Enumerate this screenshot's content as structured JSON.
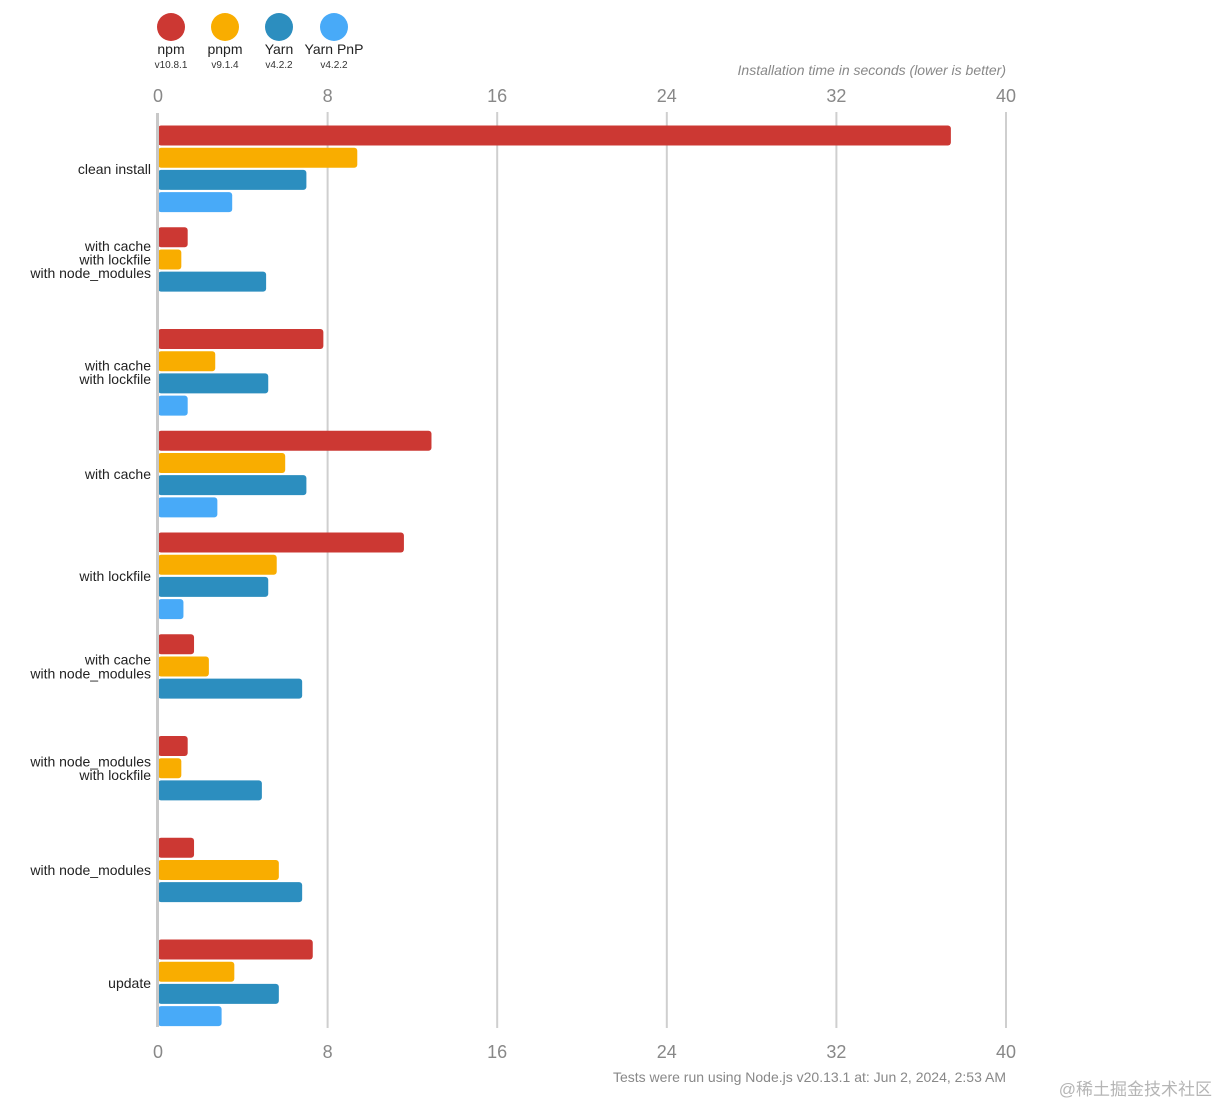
{
  "chart_data": {
    "type": "bar",
    "orientation": "horizontal",
    "axis_title": "Installation time in seconds (lower is better)",
    "footnote": "Tests were run using Node.js v20.13.1 at: Jun 2, 2024, 2:53 AM",
    "xlim": [
      0,
      40
    ],
    "ticks": [
      0,
      8,
      16,
      24,
      32,
      40
    ],
    "grid": true,
    "legend_position": "top-left",
    "categories": [
      [
        "clean install"
      ],
      [
        "with cache",
        "with lockfile",
        "with node_modules"
      ],
      [
        "with cache",
        "with lockfile"
      ],
      [
        "with cache"
      ],
      [
        "with lockfile"
      ],
      [
        "with cache",
        "with node_modules"
      ],
      [
        "with node_modules",
        "with lockfile"
      ],
      [
        "with node_modules"
      ],
      [
        "update"
      ]
    ],
    "series": [
      {
        "name": "npm",
        "version": "v10.8.1",
        "color": "#cc3833",
        "values": [
          37.4,
          1.4,
          7.8,
          12.9,
          11.6,
          1.7,
          1.4,
          1.7,
          7.3
        ]
      },
      {
        "name": "pnpm",
        "version": "v9.1.4",
        "color": "#f9ad00",
        "values": [
          9.4,
          1.1,
          2.7,
          6.0,
          5.6,
          2.4,
          1.1,
          5.7,
          3.6
        ]
      },
      {
        "name": "Yarn",
        "version": "v4.2.2",
        "color": "#2c8ebf",
        "values": [
          7.0,
          5.1,
          5.2,
          7.0,
          5.2,
          6.8,
          4.9,
          6.8,
          5.7
        ]
      },
      {
        "name": "Yarn PnP",
        "version": "v4.2.2",
        "color": "#48aaf8",
        "values": [
          3.5,
          null,
          1.4,
          2.8,
          1.2,
          null,
          null,
          null,
          3.0
        ]
      }
    ]
  },
  "watermark": "@稀土掘金技术社区"
}
